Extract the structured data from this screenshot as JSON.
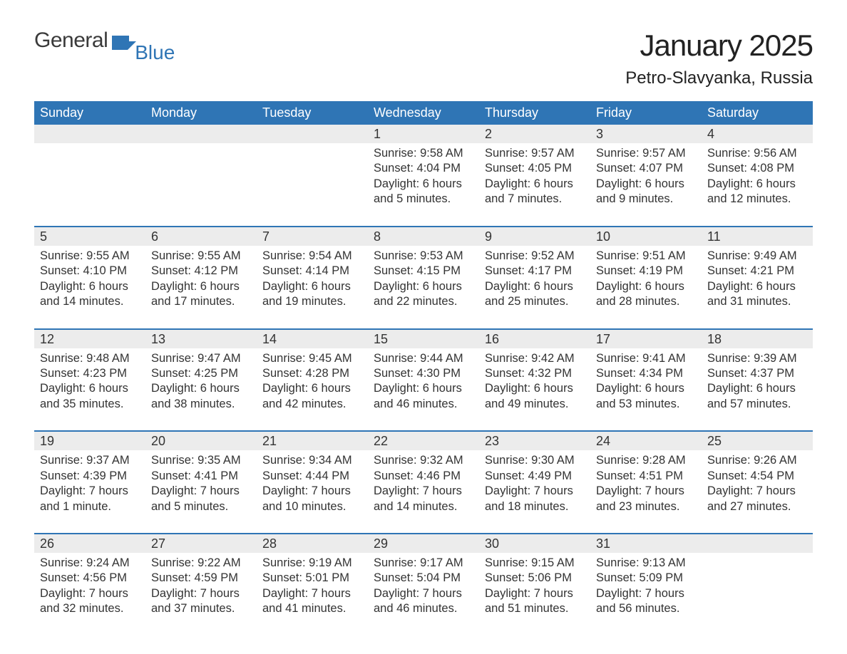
{
  "colors": {
    "header_bg": "#2f75b5",
    "header_text": "#ffffff",
    "daynum_bg": "#ececec",
    "week_border": "#2f75b5",
    "body_text": "#333333",
    "logo_gray": "#3a3a3a",
    "logo_blue": "#2f75b5",
    "page_bg": "#ffffff"
  },
  "logo": {
    "part1": "General",
    "part2": "Blue"
  },
  "title": "January 2025",
  "location": "Petro-Slavyanka, Russia",
  "dow": [
    "Sunday",
    "Monday",
    "Tuesday",
    "Wednesday",
    "Thursday",
    "Friday",
    "Saturday"
  ],
  "weeks": [
    [
      null,
      null,
      null,
      {
        "n": "1",
        "sr": "Sunrise: 9:58 AM",
        "ss": "Sunset: 4:04 PM",
        "dl": "Daylight: 6 hours and 5 minutes."
      },
      {
        "n": "2",
        "sr": "Sunrise: 9:57 AM",
        "ss": "Sunset: 4:05 PM",
        "dl": "Daylight: 6 hours and 7 minutes."
      },
      {
        "n": "3",
        "sr": "Sunrise: 9:57 AM",
        "ss": "Sunset: 4:07 PM",
        "dl": "Daylight: 6 hours and 9 minutes."
      },
      {
        "n": "4",
        "sr": "Sunrise: 9:56 AM",
        "ss": "Sunset: 4:08 PM",
        "dl": "Daylight: 6 hours and 12 minutes."
      }
    ],
    [
      {
        "n": "5",
        "sr": "Sunrise: 9:55 AM",
        "ss": "Sunset: 4:10 PM",
        "dl": "Daylight: 6 hours and 14 minutes."
      },
      {
        "n": "6",
        "sr": "Sunrise: 9:55 AM",
        "ss": "Sunset: 4:12 PM",
        "dl": "Daylight: 6 hours and 17 minutes."
      },
      {
        "n": "7",
        "sr": "Sunrise: 9:54 AM",
        "ss": "Sunset: 4:14 PM",
        "dl": "Daylight: 6 hours and 19 minutes."
      },
      {
        "n": "8",
        "sr": "Sunrise: 9:53 AM",
        "ss": "Sunset: 4:15 PM",
        "dl": "Daylight: 6 hours and 22 minutes."
      },
      {
        "n": "9",
        "sr": "Sunrise: 9:52 AM",
        "ss": "Sunset: 4:17 PM",
        "dl": "Daylight: 6 hours and 25 minutes."
      },
      {
        "n": "10",
        "sr": "Sunrise: 9:51 AM",
        "ss": "Sunset: 4:19 PM",
        "dl": "Daylight: 6 hours and 28 minutes."
      },
      {
        "n": "11",
        "sr": "Sunrise: 9:49 AM",
        "ss": "Sunset: 4:21 PM",
        "dl": "Daylight: 6 hours and 31 minutes."
      }
    ],
    [
      {
        "n": "12",
        "sr": "Sunrise: 9:48 AM",
        "ss": "Sunset: 4:23 PM",
        "dl": "Daylight: 6 hours and 35 minutes."
      },
      {
        "n": "13",
        "sr": "Sunrise: 9:47 AM",
        "ss": "Sunset: 4:25 PM",
        "dl": "Daylight: 6 hours and 38 minutes."
      },
      {
        "n": "14",
        "sr": "Sunrise: 9:45 AM",
        "ss": "Sunset: 4:28 PM",
        "dl": "Daylight: 6 hours and 42 minutes."
      },
      {
        "n": "15",
        "sr": "Sunrise: 9:44 AM",
        "ss": "Sunset: 4:30 PM",
        "dl": "Daylight: 6 hours and 46 minutes."
      },
      {
        "n": "16",
        "sr": "Sunrise: 9:42 AM",
        "ss": "Sunset: 4:32 PM",
        "dl": "Daylight: 6 hours and 49 minutes."
      },
      {
        "n": "17",
        "sr": "Sunrise: 9:41 AM",
        "ss": "Sunset: 4:34 PM",
        "dl": "Daylight: 6 hours and 53 minutes."
      },
      {
        "n": "18",
        "sr": "Sunrise: 9:39 AM",
        "ss": "Sunset: 4:37 PM",
        "dl": "Daylight: 6 hours and 57 minutes."
      }
    ],
    [
      {
        "n": "19",
        "sr": "Sunrise: 9:37 AM",
        "ss": "Sunset: 4:39 PM",
        "dl": "Daylight: 7 hours and 1 minute."
      },
      {
        "n": "20",
        "sr": "Sunrise: 9:35 AM",
        "ss": "Sunset: 4:41 PM",
        "dl": "Daylight: 7 hours and 5 minutes."
      },
      {
        "n": "21",
        "sr": "Sunrise: 9:34 AM",
        "ss": "Sunset: 4:44 PM",
        "dl": "Daylight: 7 hours and 10 minutes."
      },
      {
        "n": "22",
        "sr": "Sunrise: 9:32 AM",
        "ss": "Sunset: 4:46 PM",
        "dl": "Daylight: 7 hours and 14 minutes."
      },
      {
        "n": "23",
        "sr": "Sunrise: 9:30 AM",
        "ss": "Sunset: 4:49 PM",
        "dl": "Daylight: 7 hours and 18 minutes."
      },
      {
        "n": "24",
        "sr": "Sunrise: 9:28 AM",
        "ss": "Sunset: 4:51 PM",
        "dl": "Daylight: 7 hours and 23 minutes."
      },
      {
        "n": "25",
        "sr": "Sunrise: 9:26 AM",
        "ss": "Sunset: 4:54 PM",
        "dl": "Daylight: 7 hours and 27 minutes."
      }
    ],
    [
      {
        "n": "26",
        "sr": "Sunrise: 9:24 AM",
        "ss": "Sunset: 4:56 PM",
        "dl": "Daylight: 7 hours and 32 minutes."
      },
      {
        "n": "27",
        "sr": "Sunrise: 9:22 AM",
        "ss": "Sunset: 4:59 PM",
        "dl": "Daylight: 7 hours and 37 minutes."
      },
      {
        "n": "28",
        "sr": "Sunrise: 9:19 AM",
        "ss": "Sunset: 5:01 PM",
        "dl": "Daylight: 7 hours and 41 minutes."
      },
      {
        "n": "29",
        "sr": "Sunrise: 9:17 AM",
        "ss": "Sunset: 5:04 PM",
        "dl": "Daylight: 7 hours and 46 minutes."
      },
      {
        "n": "30",
        "sr": "Sunrise: 9:15 AM",
        "ss": "Sunset: 5:06 PM",
        "dl": "Daylight: 7 hours and 51 minutes."
      },
      {
        "n": "31",
        "sr": "Sunrise: 9:13 AM",
        "ss": "Sunset: 5:09 PM",
        "dl": "Daylight: 7 hours and 56 minutes."
      },
      null
    ]
  ]
}
